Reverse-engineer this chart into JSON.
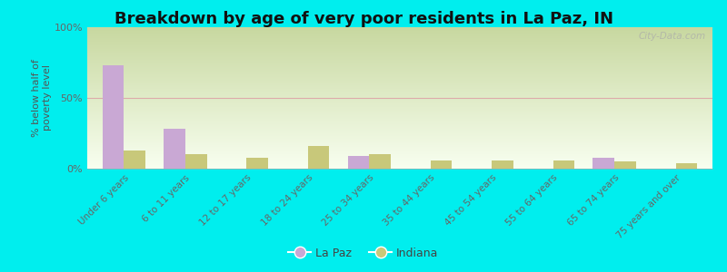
{
  "title": "Breakdown by age of very poor residents in La Paz, IN",
  "ylabel": "% below half of\npoverty level",
  "categories": [
    "Under 6 years",
    "6 to 11 years",
    "12 to 17 years",
    "18 to 24 years",
    "25 to 34 years",
    "35 to 44 years",
    "45 to 54 years",
    "55 to 64 years",
    "65 to 74 years",
    "75 years and over"
  ],
  "lapaz_values": [
    73,
    28,
    0,
    0,
    9,
    0,
    0,
    0,
    8,
    0
  ],
  "indiana_values": [
    13,
    10,
    8,
    16,
    10,
    6,
    6,
    6,
    5,
    4
  ],
  "lapaz_color": "#c9a8d4",
  "indiana_color": "#c8c87a",
  "background_color": "#00eeee",
  "ylim": [
    0,
    100
  ],
  "yticks": [
    0,
    50,
    100
  ],
  "ytick_labels": [
    "0%",
    "50%",
    "100%"
  ],
  "bar_width": 0.35,
  "title_fontsize": 13,
  "watermark": "City-Data.com",
  "hline_color": "#ddaaaa",
  "grad_top": "#c8d8a0",
  "grad_bottom": "#f8fff0"
}
